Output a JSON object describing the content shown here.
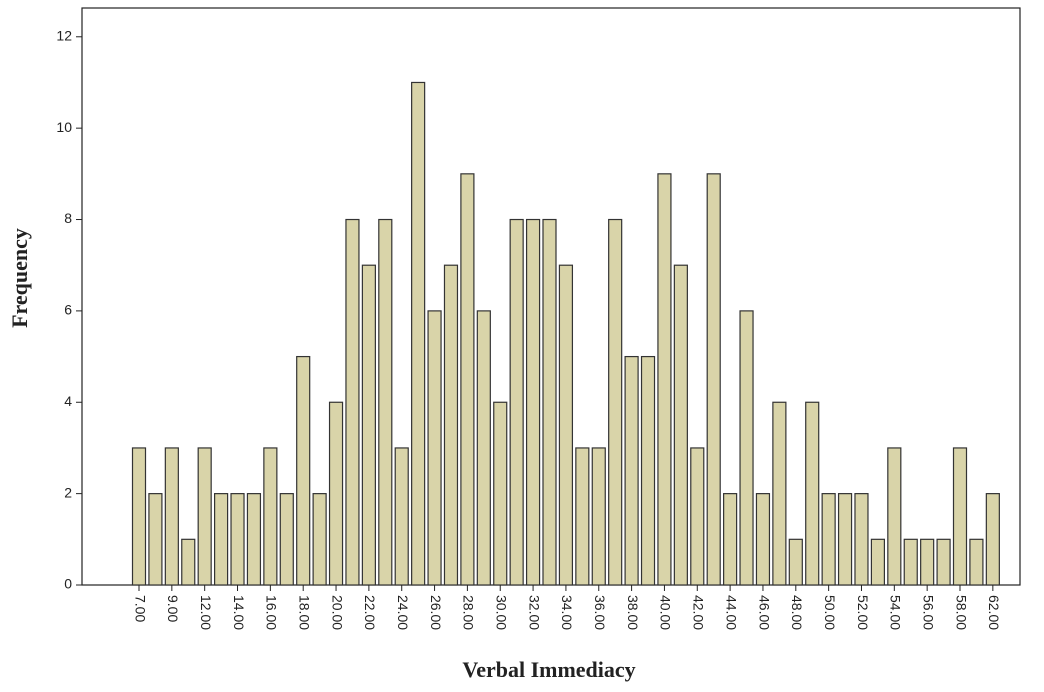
{
  "chart_data": {
    "type": "bar",
    "x_label": "Verbal Immediacy",
    "y_label": "Frequency",
    "categories": [
      "7.00",
      null,
      "9.00",
      null,
      "12.00",
      null,
      "14.00",
      null,
      "16.00",
      null,
      "18.00",
      null,
      "20.00",
      null,
      "22.00",
      null,
      "24.00",
      null,
      "26.00",
      null,
      "28.00",
      null,
      "30.00",
      null,
      "32.00",
      null,
      "34.00",
      null,
      "36.00",
      null,
      "38.00",
      null,
      "40.00",
      null,
      "42.00",
      null,
      "44.00",
      null,
      "46.00",
      null,
      "48.00",
      null,
      "50.00",
      null,
      "52.00",
      null,
      "54.00",
      null,
      "56.00",
      null,
      "58.00",
      null,
      "62.00"
    ],
    "values": [
      3,
      2,
      3,
      1,
      3,
      2,
      2,
      2,
      3,
      2,
      5,
      2,
      4,
      8,
      7,
      8,
      3,
      11,
      6,
      7,
      9,
      6,
      4,
      8,
      8,
      8,
      7,
      3,
      3,
      8,
      5,
      5,
      9,
      7,
      3,
      9,
      2,
      6,
      2,
      4,
      1,
      4,
      2,
      2,
      2,
      1,
      3,
      1,
      1,
      1,
      3,
      1,
      2
    ],
    "color": "#d9d4a9",
    "ylim": [
      0,
      12.63
    ],
    "yticks": [
      0,
      2,
      4,
      6,
      8,
      10,
      12
    ]
  }
}
